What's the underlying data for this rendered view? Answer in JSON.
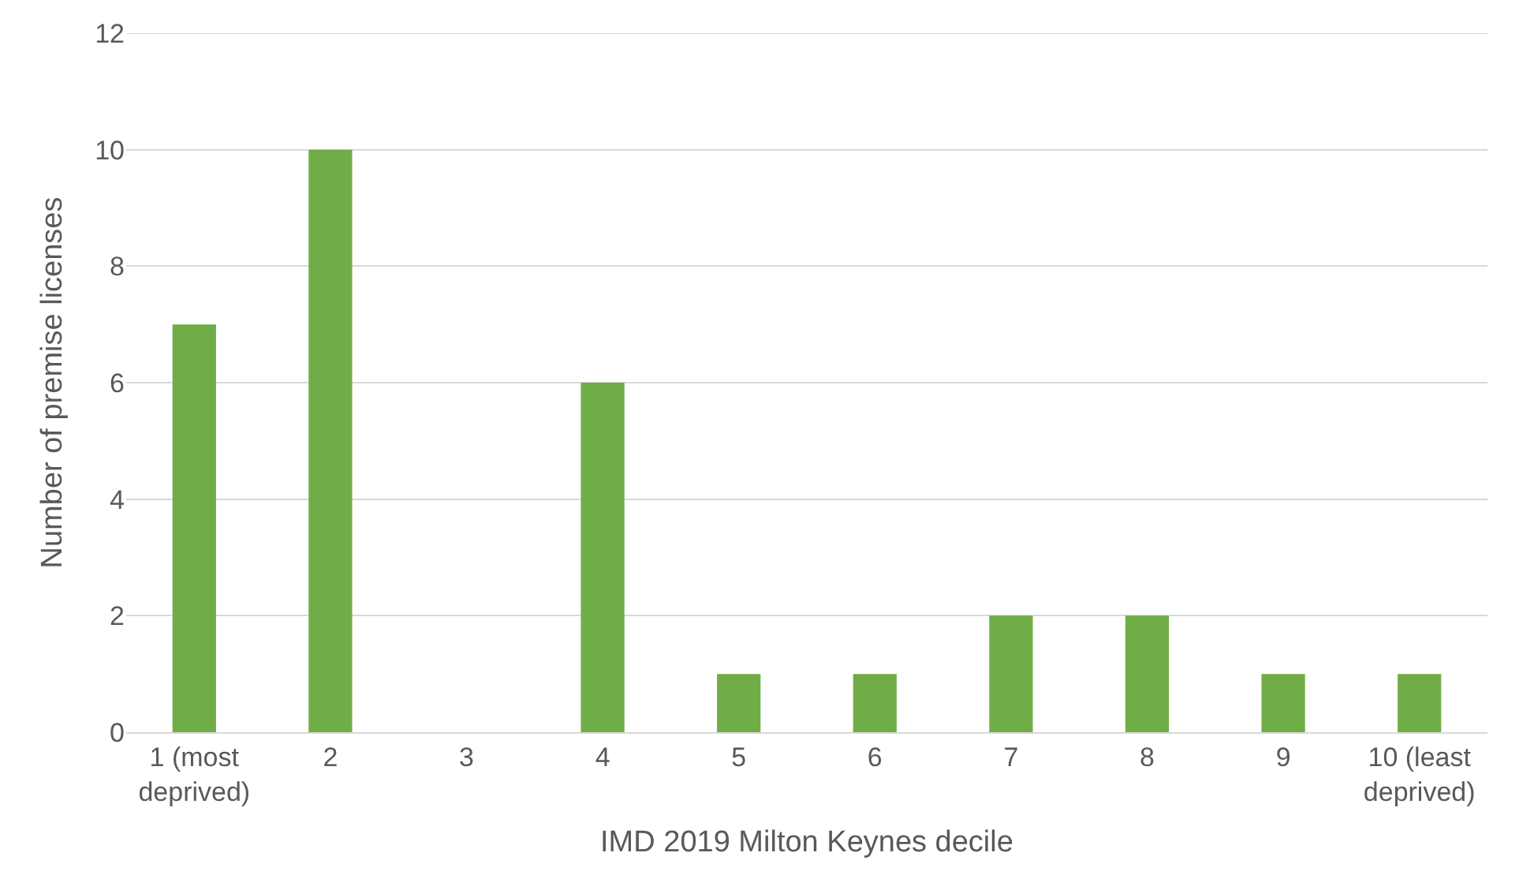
{
  "chart_data": {
    "type": "bar",
    "xlabel": "IMD 2019 Milton Keynes decile",
    "ylabel": "Number of premise licenses",
    "categories": [
      "1 (most\ndeprived)",
      "2",
      "3",
      "4",
      "5",
      "6",
      "7",
      "8",
      "9",
      "10 (least\ndeprived)"
    ],
    "values": [
      7,
      10,
      0,
      6,
      1,
      1,
      2,
      2,
      1,
      1
    ],
    "color": "#70ad47",
    "ylim": [
      0,
      12
    ],
    "yticks": [
      0,
      2,
      4,
      6,
      8,
      10,
      12
    ],
    "grid": "y",
    "legend": false
  }
}
